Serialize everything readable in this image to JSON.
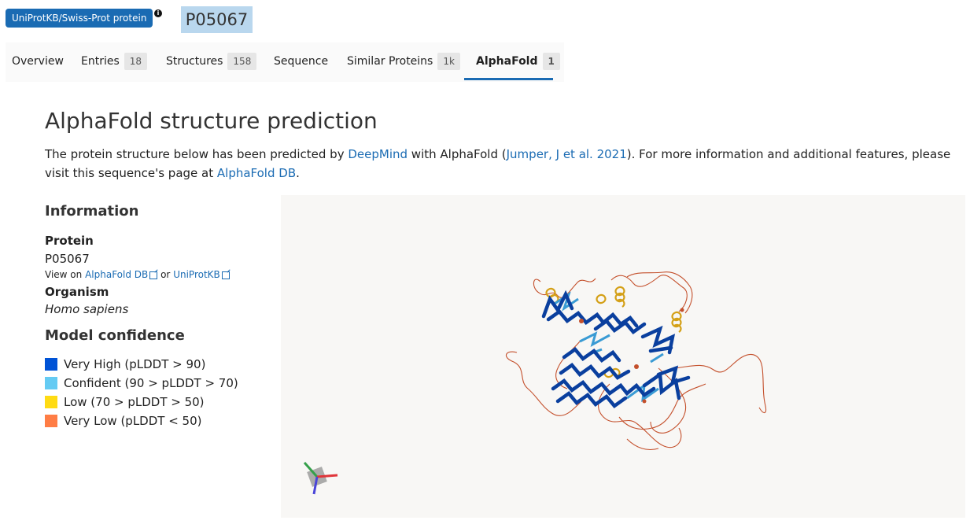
{
  "header": {
    "db_badge": "UniProtKB/Swiss-Prot protein",
    "info_icon": "info-icon",
    "accession": "P05067"
  },
  "tabs": [
    {
      "label": "Overview",
      "count": ""
    },
    {
      "label": "Entries",
      "count": "18"
    },
    {
      "label": "Structures",
      "count": "158"
    },
    {
      "label": "Sequence",
      "count": ""
    },
    {
      "label": "Similar Proteins",
      "count": "1k"
    },
    {
      "label": "AlphaFold",
      "count": "1",
      "active": true
    }
  ],
  "main": {
    "title": "AlphaFold structure prediction",
    "desc_part1": "The protein structure below has been predicted by ",
    "deepmind_link": "DeepMind",
    "desc_part2": " with AlphaFold (",
    "citation_link": "Jumper, J et al. 2021",
    "desc_part3": "). For more information and additional features, please visit this sequence's page at ",
    "afdb_link": "AlphaFold DB",
    "desc_part4": "."
  },
  "information": {
    "heading": "Information",
    "protein_label": "Protein",
    "protein_value": "P05067",
    "view_on": "View on",
    "afdb_link": "AlphaFold DB",
    "or": "or",
    "uniprot_link": "UniProtKB",
    "organism_label": "Organism",
    "organism_value": "Homo sapiens"
  },
  "confidence": {
    "heading": "Model confidence",
    "items": [
      {
        "label": "Very High (pLDDT > 90)",
        "color": "#0053d6"
      },
      {
        "label": "Confident (90 > pLDDT > 70)",
        "color": "#65cbf3"
      },
      {
        "label": "Low (70 > pLDDT > 50)",
        "color": "#ffdb13"
      },
      {
        "label": "Very Low (pLDDT < 50)",
        "color": "#ff7d45"
      }
    ]
  },
  "colors": {
    "accent": "#1a6bb3",
    "accession_bg": "#b9d7ee",
    "viewer_bg": "#f8f7f5"
  }
}
